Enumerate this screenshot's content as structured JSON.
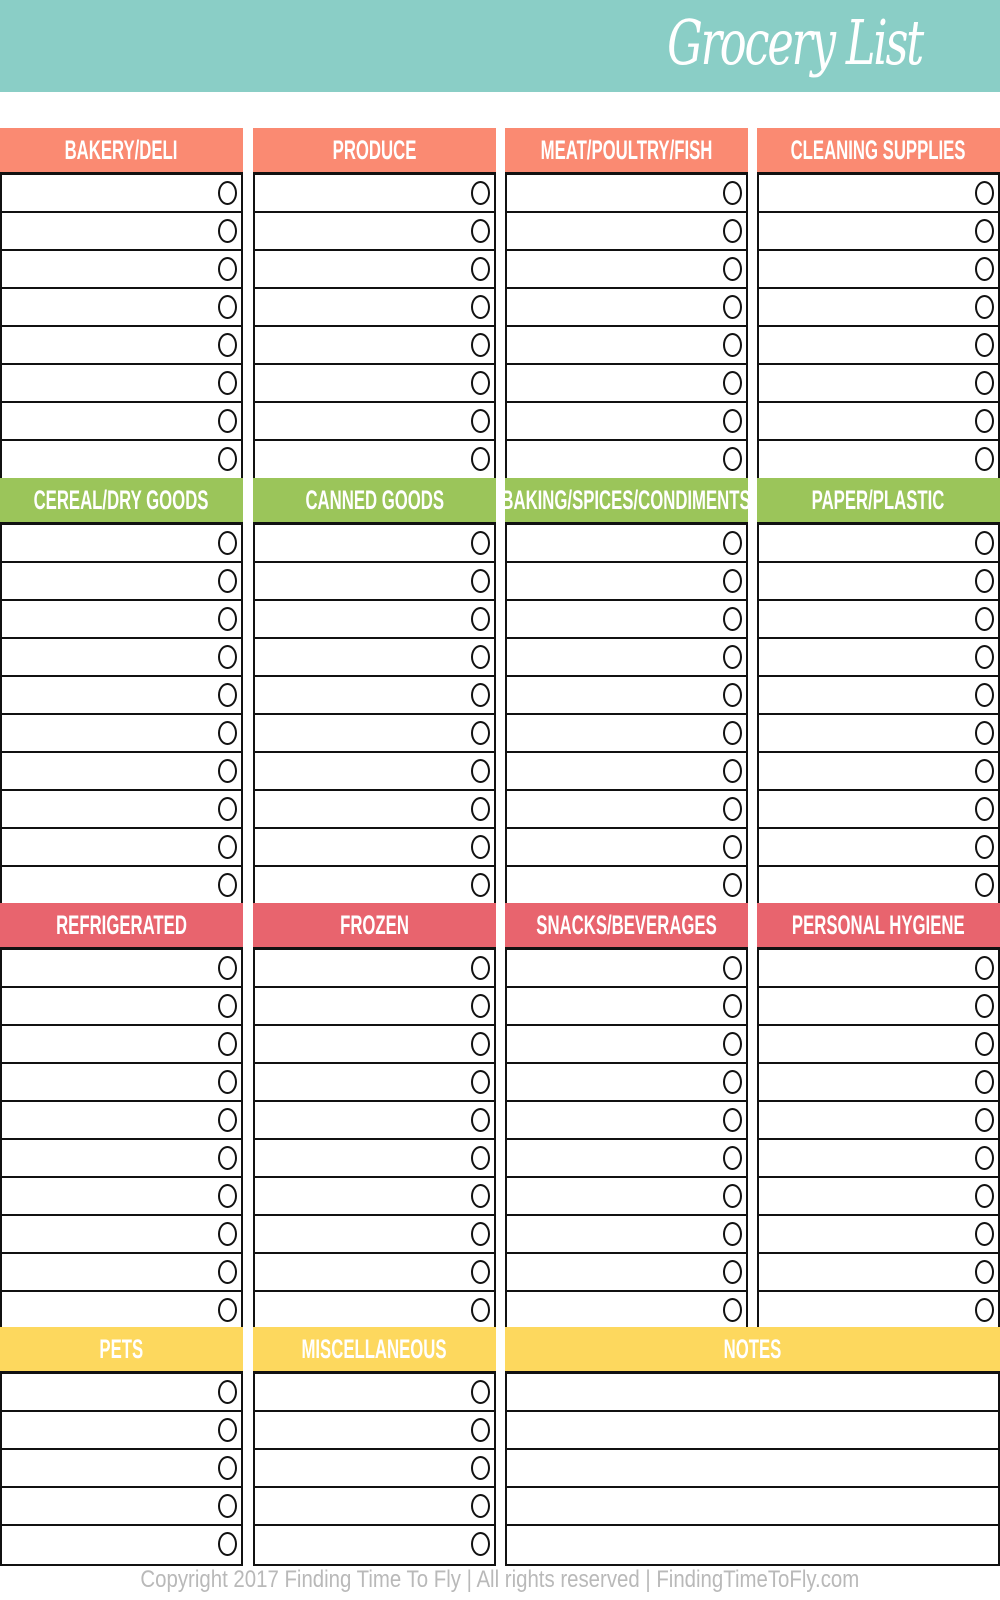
{
  "header": {
    "title": "Grocery List",
    "color": "#8acec6"
  },
  "colors": {
    "coral": "#fa8a72",
    "green": "#9bc55a",
    "red": "#e8646e",
    "yellow": "#fdd85e"
  },
  "bands": [
    {
      "color": "#fa8a72",
      "item_lines": 8,
      "sections": [
        {
          "title": "BAKERY/DELI"
        },
        {
          "title": "PRODUCE"
        },
        {
          "title": "MEAT/POULTRY/FISH"
        },
        {
          "title": "CLEANING SUPPLIES"
        }
      ]
    },
    {
      "color": "#9bc55a",
      "item_lines": 10,
      "sections": [
        {
          "title": "CEREAL/DRY GOODS"
        },
        {
          "title": "CANNED GOODS"
        },
        {
          "title": "BAKING/SPICES/CONDIMENTS"
        },
        {
          "title": "PAPER/PLASTIC"
        }
      ]
    },
    {
      "color": "#e8646e",
      "item_lines": 10,
      "sections": [
        {
          "title": "REFRIGERATED"
        },
        {
          "title": "FROZEN"
        },
        {
          "title": "SNACKS/BEVERAGES"
        },
        {
          "title": "PERSONAL HYGIENE"
        }
      ]
    },
    {
      "color": "#fdd85e",
      "item_lines": 5,
      "sections": [
        {
          "title": "PETS"
        },
        {
          "title": "MISCELLANEOUS"
        },
        {
          "title": "NOTES",
          "notes": true
        }
      ]
    }
  ],
  "footer": {
    "text": "Copyright 2017 Finding Time To Fly | All rights reserved | FindingTimeToFly.com"
  }
}
